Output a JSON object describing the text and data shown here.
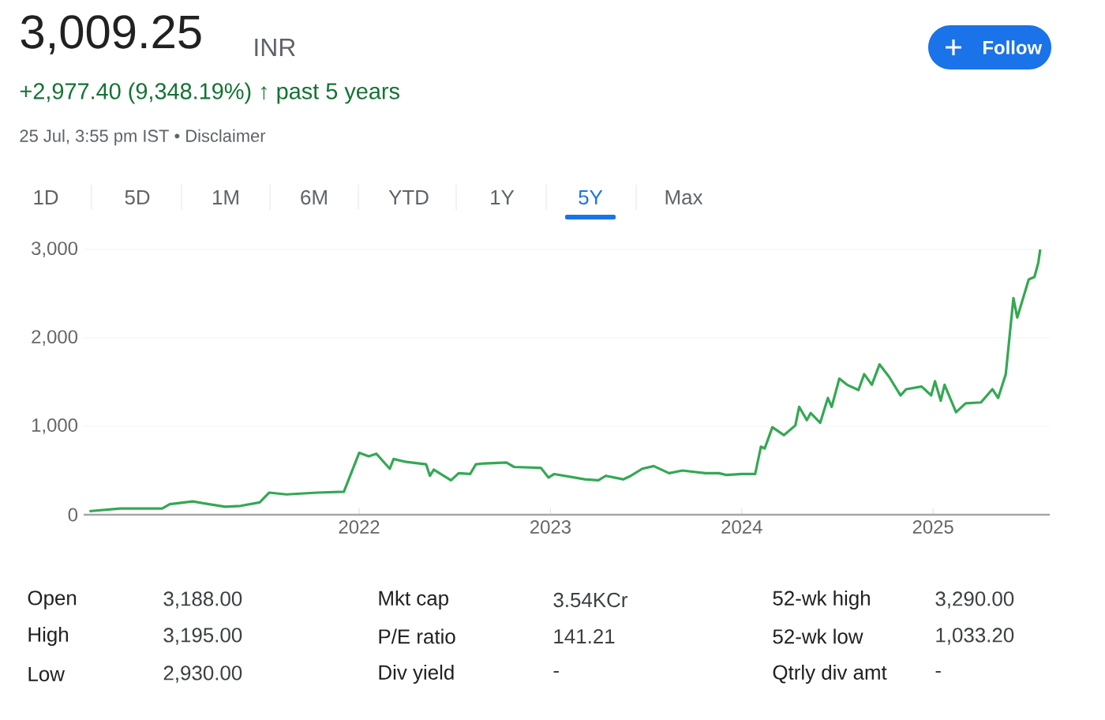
{
  "chart_data": {
    "type": "line",
    "title": "3,009.25",
    "annotations": [
      "INR",
      "+2,977.40 (9,348.19%) ↑ past 5 years",
      "25 Jul, 3:55 pm IST • Disclaimer",
      "Follow",
      "1D",
      "5D",
      "1M",
      "6M",
      "YTD",
      "1Y",
      "5Y",
      "Max",
      "Open",
      "3,188.00",
      "Mkt cap",
      "3.54KCr",
      "52-wk high",
      "3,290.00",
      "High",
      "3,195.00",
      "P/E ratio",
      "141.21",
      "52-wk low",
      "1,033.20",
      "Low",
      "2,930.00",
      "Div yield",
      "-",
      "Qtrly div amt",
      "-"
    ],
    "x": [
      "2020-08-04",
      "2020-10-01",
      "2020-12-20",
      "2021-01-04",
      "2021-02-17",
      "2021-04-20",
      "2021-05-19",
      "2021-06-24",
      "2021-07-13",
      "2021-08-15",
      "2021-10-12",
      "2021-12-02",
      "2022-01-01",
      "2022-01-19",
      "2022-02-03",
      "2022-02-28",
      "2022-03-07",
      "2022-03-29",
      "2022-05-08",
      "2022-05-16",
      "2022-05-23",
      "2022-06-25",
      "2022-07-09",
      "2022-07-31",
      "2022-08-11",
      "2022-08-25",
      "2022-10-08",
      "2022-10-23",
      "2022-12-13",
      "2022-12-28",
      "2023-01-08",
      "2023-03-08",
      "2023-04-02",
      "2023-04-16",
      "2023-05-19",
      "2023-06-03",
      "2023-06-25",
      "2023-07-16",
      "2023-08-15",
      "2023-09-09",
      "2023-10-23",
      "2023-11-17",
      "2023-12-02",
      "2024-01-01",
      "2024-01-26",
      "2024-02-06",
      "2024-02-14",
      "2024-02-28",
      "2024-03-21",
      "2024-04-12",
      "2024-04-20",
      "2024-05-04",
      "2024-05-12",
      "2024-05-30",
      "2024-06-14",
      "2024-06-21",
      "2024-07-05",
      "2024-07-20",
      "2024-08-11",
      "2024-08-22",
      "2024-09-06",
      "2024-09-20",
      "2024-10-08",
      "2024-10-30",
      "2024-11-10",
      "2024-12-09",
      "2024-12-28",
      "2025-01-04",
      "2025-01-15",
      "2025-01-22",
      "2025-02-14",
      "2025-03-04",
      "2025-04-02",
      "2025-04-23",
      "2025-05-04",
      "2025-05-19",
      "2025-06-02",
      "2025-06-12",
      "2025-07-02",
      "2025-07-12",
      "2025-07-19",
      "2025-07-25"
    ],
    "values": [
      40,
      70,
      70,
      120,
      150,
      90,
      100,
      140,
      250,
      230,
      250,
      260,
      700,
      660,
      690,
      520,
      630,
      600,
      570,
      440,
      510,
      390,
      470,
      460,
      570,
      580,
      590,
      540,
      530,
      420,
      460,
      400,
      390,
      440,
      400,
      440,
      520,
      550,
      470,
      500,
      470,
      470,
      450,
      460,
      460,
      770,
      750,
      990,
      900,
      1010,
      1220,
      1070,
      1150,
      1040,
      1320,
      1220,
      1540,
      1470,
      1410,
      1590,
      1470,
      1700,
      1560,
      1350,
      1420,
      1450,
      1350,
      1510,
      1290,
      1470,
      1160,
      1260,
      1270,
      1420,
      1320,
      1590,
      2450,
      2230,
      2660,
      2690,
      2850,
      3000
    ],
    "color": "#34a853",
    "xlim": [
      "2020-07-25",
      "2025-08-10"
    ],
    "xticks": [
      "2022",
      "2023",
      "2024",
      "2025"
    ],
    "ylim": [
      0,
      3000
    ],
    "yticks": [
      0,
      {
        "value": 1000,
        "label": "1,000"
      },
      {
        "value": 2000,
        "label": "2,000"
      },
      {
        "value": 3000,
        "label": "3,000"
      }
    ],
    "grid": "y"
  }
}
